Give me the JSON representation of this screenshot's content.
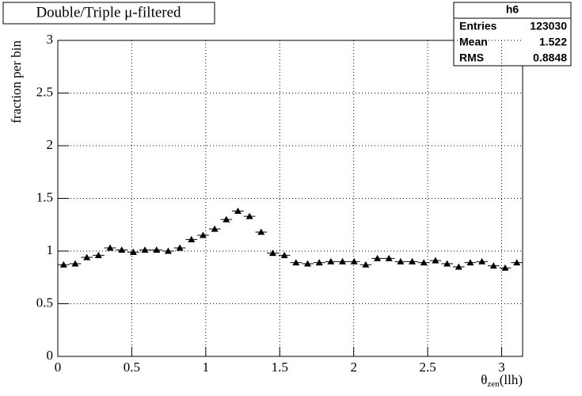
{
  "chart_data": {
    "type": "histogram",
    "title": "Double/Triple μ-filtered",
    "ylabel": "fraction per bin",
    "xlabel": {
      "main": "θ",
      "sub": "zen",
      "rest": "(llh)"
    },
    "bins": [
      0,
      0.0785,
      0.1571,
      0.2356,
      0.3142,
      0.3927,
      0.4712,
      0.5498,
      0.6283,
      0.7069,
      0.7854,
      0.8639,
      0.9425,
      1.021,
      1.0996,
      1.1781,
      1.2566,
      1.3352,
      1.4137,
      1.4923,
      1.5708,
      1.6493,
      1.7279,
      1.8064,
      1.885,
      1.9635,
      2.042,
      2.1206,
      2.1991,
      2.2777,
      2.3562,
      2.4347,
      2.5133,
      2.5918,
      2.6704,
      2.7489,
      2.8274,
      2.906,
      2.9845,
      3.0631,
      3.1416
    ],
    "values": [
      0.87,
      0.88,
      0.94,
      0.96,
      1.03,
      1.01,
      0.99,
      1.01,
      1.01,
      1.0,
      1.03,
      1.11,
      1.15,
      1.21,
      1.3,
      1.38,
      1.33,
      1.18,
      0.98,
      0.96,
      0.89,
      0.88,
      0.89,
      0.9,
      0.9,
      0.9,
      0.87,
      0.93,
      0.93,
      0.9,
      0.9,
      0.89,
      0.91,
      0.88,
      0.85,
      0.89,
      0.9,
      0.86,
      0.84,
      0.89
    ],
    "color": "#000000",
    "xlim": [
      0,
      3.1416
    ],
    "ylim": [
      0,
      3
    ],
    "xticks": [
      0,
      0.5,
      1,
      1.5,
      2,
      2.5,
      3
    ],
    "yticks": [
      0,
      0.5,
      1,
      1.5,
      2,
      2.5,
      3
    ],
    "grid": true,
    "stats": {
      "title": "h6",
      "rows": [
        [
          "Entries",
          123030
        ],
        [
          "Mean",
          1.522
        ],
        [
          "RMS",
          0.8848
        ]
      ]
    }
  }
}
